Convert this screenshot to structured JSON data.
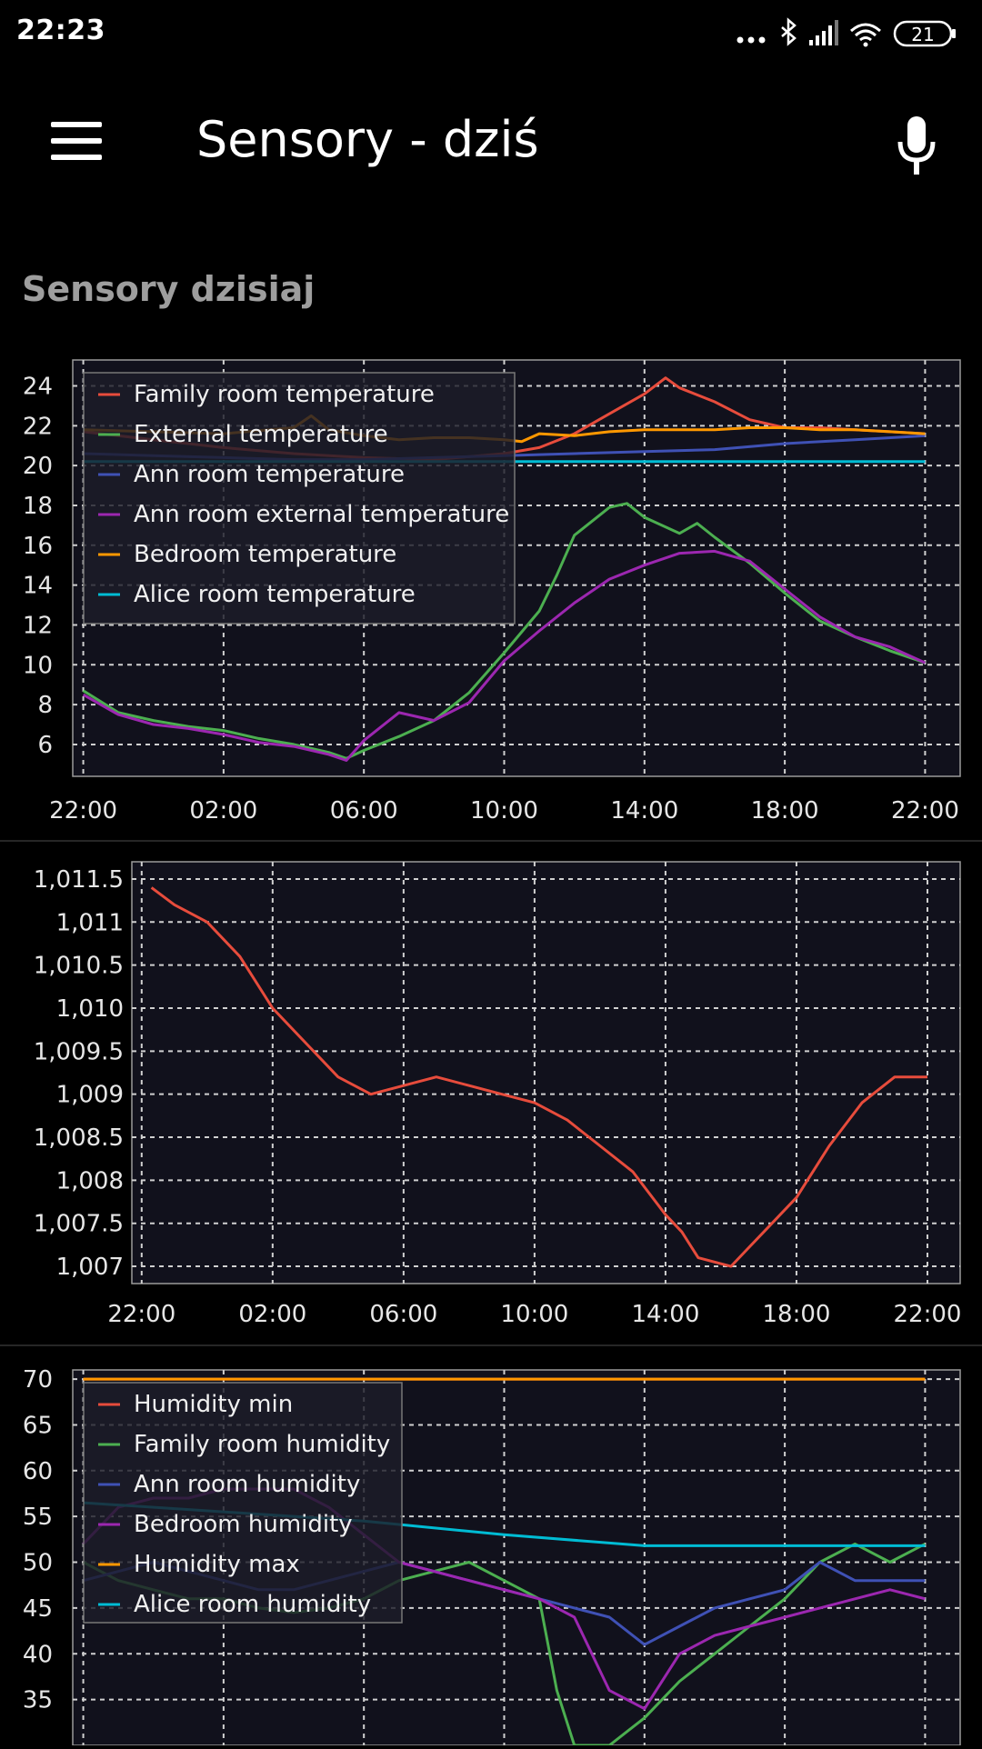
{
  "status_bar": {
    "time": "22:23",
    "battery": "21",
    "icons": [
      "more-dots-icon",
      "bluetooth-icon",
      "signal-icon",
      "wifi-icon",
      "battery-icon"
    ]
  },
  "app_bar": {
    "title": "Sensory - dziś",
    "menu_icon": "hamburger-menu-icon",
    "mic_icon": "microphone-icon"
  },
  "section_title": "Sensory dzisiaj",
  "chart_data": [
    {
      "type": "line",
      "x_ticks": [
        "22:00",
        "02:00",
        "06:00",
        "10:00",
        "14:00",
        "18:00",
        "22:00"
      ],
      "x_tick_hours": [
        0,
        4,
        8,
        12,
        16,
        20,
        24
      ],
      "xlim": [
        -0.3,
        25
      ],
      "yticks": [
        24,
        22,
        20,
        18,
        16,
        14,
        12,
        10,
        8,
        6
      ],
      "ylim": [
        4.4,
        25.3
      ],
      "legend": "top-left",
      "grid": true,
      "series": [
        {
          "name": "Family room temperature",
          "color": "#e74c3c",
          "x": [
            0,
            2,
            4,
            6,
            8,
            10,
            12,
            13,
            14,
            15,
            16,
            16.6,
            17,
            18,
            19,
            20,
            21,
            22,
            23,
            24
          ],
          "values": [
            21.7,
            21.3,
            20.9,
            20.6,
            20.4,
            20.3,
            20.6,
            20.9,
            21.6,
            22.6,
            23.6,
            24.4,
            23.9,
            23.2,
            22.3,
            21.9,
            21.9,
            21.8,
            21.7,
            21.6
          ]
        },
        {
          "name": "External temperature",
          "color": "#4caf50",
          "x": [
            0,
            1,
            2,
            3,
            4,
            5,
            6,
            7,
            7.5,
            8,
            9,
            10,
            11,
            12,
            13,
            13.5,
            14,
            15,
            15.5,
            16,
            17,
            17.5,
            18,
            19,
            20,
            21,
            22,
            23,
            24
          ],
          "values": [
            8.7,
            7.6,
            7.2,
            6.9,
            6.7,
            6.3,
            6.0,
            5.6,
            5.3,
            5.7,
            6.4,
            7.2,
            8.6,
            10.6,
            12.7,
            14.5,
            16.5,
            17.9,
            18.1,
            17.4,
            16.6,
            17.1,
            16.4,
            15.1,
            13.6,
            12.2,
            11.4,
            10.7,
            10.1
          ]
        },
        {
          "name": "Ann room temperature",
          "color": "#3f51b5",
          "x": [
            0,
            2,
            4,
            6,
            8,
            10,
            12,
            14,
            16,
            18,
            20,
            22,
            24
          ],
          "values": [
            20.6,
            20.5,
            20.4,
            20.3,
            20.3,
            20.4,
            20.5,
            20.6,
            20.7,
            20.8,
            21.1,
            21.3,
            21.5
          ]
        },
        {
          "name": "Ann room external temperature",
          "color": "#9c27b0",
          "x": [
            0,
            1,
            2,
            3,
            4,
            5,
            6,
            7,
            7.5,
            8,
            9,
            10,
            11,
            12,
            13,
            14,
            15,
            16,
            17,
            18,
            19,
            20,
            21,
            22,
            23,
            24
          ],
          "values": [
            8.5,
            7.5,
            7.0,
            6.8,
            6.5,
            6.1,
            5.9,
            5.5,
            5.2,
            6.2,
            7.6,
            7.2,
            8.1,
            10.2,
            11.7,
            13.1,
            14.3,
            15.0,
            15.6,
            15.7,
            15.2,
            13.8,
            12.4,
            11.4,
            10.9,
            10.1
          ]
        },
        {
          "name": "Bedroom temperature",
          "color": "#ff9800",
          "x": [
            0,
            2,
            4,
            6,
            6.5,
            7,
            8,
            9,
            10,
            11,
            12,
            12.5,
            13,
            14,
            15,
            16,
            17,
            18,
            19,
            20,
            21,
            22,
            23,
            24
          ],
          "values": [
            21.8,
            21.7,
            21.6,
            21.9,
            22.5,
            21.8,
            21.5,
            21.3,
            21.4,
            21.4,
            21.3,
            21.2,
            21.6,
            21.5,
            21.7,
            21.8,
            21.8,
            21.8,
            21.9,
            21.9,
            21.8,
            21.8,
            21.7,
            21.6
          ]
        },
        {
          "name": "Alice room temperature",
          "color": "#00bcd4",
          "x": [
            0,
            12,
            24
          ],
          "values": [
            20.2,
            20.2,
            20.2
          ]
        }
      ]
    },
    {
      "type": "line",
      "x_ticks": [
        "22:00",
        "02:00",
        "06:00",
        "10:00",
        "14:00",
        "18:00",
        "22:00"
      ],
      "x_tick_hours": [
        0,
        4,
        8,
        12,
        16,
        20,
        24
      ],
      "xlim": [
        -0.3,
        25
      ],
      "yticks": [
        "1,011.5",
        "1,011",
        "1,010.5",
        "1,010",
        "1,009.5",
        "1,009",
        "1,008.5",
        "1,008",
        "1,007.5",
        "1,007"
      ],
      "ytick_values": [
        1011.5,
        1011,
        1010.5,
        1010,
        1009.5,
        1009,
        1008.5,
        1008,
        1007.5,
        1007
      ],
      "ylim": [
        1006.8,
        1011.7
      ],
      "grid": true,
      "series": [
        {
          "color": "#e74c3c",
          "x": [
            0.3,
            1,
            2,
            3,
            4,
            5,
            6,
            7,
            8,
            9,
            10,
            11,
            12,
            13,
            14,
            15,
            16,
            16.5,
            17,
            18,
            18.5,
            19,
            20,
            21,
            22,
            23,
            24
          ],
          "values": [
            1011.4,
            1011.2,
            1011.0,
            1010.6,
            1010.0,
            1009.6,
            1009.2,
            1009.0,
            1009.1,
            1009.2,
            1009.1,
            1009.0,
            1008.9,
            1008.7,
            1008.4,
            1008.1,
            1007.6,
            1007.4,
            1007.1,
            1007.0,
            1007.2,
            1007.4,
            1007.8,
            1008.4,
            1008.9,
            1009.2,
            1009.2
          ]
        }
      ]
    },
    {
      "type": "line",
      "x_ticks": [],
      "x_tick_hours": [
        0,
        4,
        8,
        12,
        16,
        20,
        24
      ],
      "xlim": [
        -0.3,
        25
      ],
      "yticks": [
        70,
        65,
        60,
        55,
        50,
        45,
        40,
        35
      ],
      "ylim": [
        30,
        71
      ],
      "legend": "top-left",
      "grid": true,
      "series": [
        {
          "name": "Humidity min",
          "color": "#e74c3c",
          "x": [
            0,
            24
          ],
          "values": [
            70,
            70
          ]
        },
        {
          "name": "Family room humidity",
          "color": "#4caf50",
          "x": [
            0,
            1,
            2,
            3,
            4,
            5,
            6,
            7,
            8,
            9,
            10,
            11,
            12,
            13,
            13.5,
            14,
            15,
            16,
            17,
            18,
            19,
            20,
            21,
            22,
            23,
            24
          ],
          "values": [
            50,
            48,
            47,
            46,
            46,
            45,
            44.5,
            45,
            46,
            48,
            49,
            50,
            48,
            46,
            36,
            30,
            30,
            33,
            37,
            40,
            43,
            46,
            50,
            52,
            50,
            52
          ]
        },
        {
          "name": "Ann room humidity",
          "color": "#3f51b5",
          "x": [
            0,
            1,
            2,
            3,
            4,
            5,
            6,
            7,
            8,
            9,
            10,
            11,
            12,
            13,
            14,
            15,
            16,
            17,
            18,
            19,
            20,
            21,
            22,
            23,
            24
          ],
          "values": [
            48,
            49,
            50,
            49,
            48,
            47,
            47,
            48,
            49,
            50,
            49,
            48,
            47,
            46,
            45,
            44,
            41,
            43,
            45,
            46,
            47,
            50,
            48,
            48,
            48
          ]
        },
        {
          "name": "Bedroom humidity",
          "color": "#9c27b0",
          "x": [
            0,
            1,
            2,
            3,
            4,
            5,
            6,
            7,
            8,
            9,
            10,
            11,
            12,
            13,
            14,
            15,
            16,
            17,
            18,
            19,
            20,
            21,
            22,
            23,
            24
          ],
          "values": [
            52,
            56,
            57,
            57,
            58,
            58,
            58,
            56,
            53,
            50,
            49,
            48,
            47,
            46,
            44,
            36,
            34,
            40,
            42,
            43,
            44,
            45,
            46,
            47,
            46
          ]
        },
        {
          "name": "Humidity max",
          "color": "#ff9800",
          "x": [
            0,
            24
          ],
          "values": [
            70,
            70
          ]
        },
        {
          "name": "Alice room humidity",
          "color": "#00bcd4",
          "x": [
            0,
            4,
            8,
            12,
            16,
            20,
            24
          ],
          "values": [
            56.5,
            55.5,
            54.5,
            53,
            51.8,
            51.8,
            51.8
          ]
        }
      ]
    }
  ]
}
